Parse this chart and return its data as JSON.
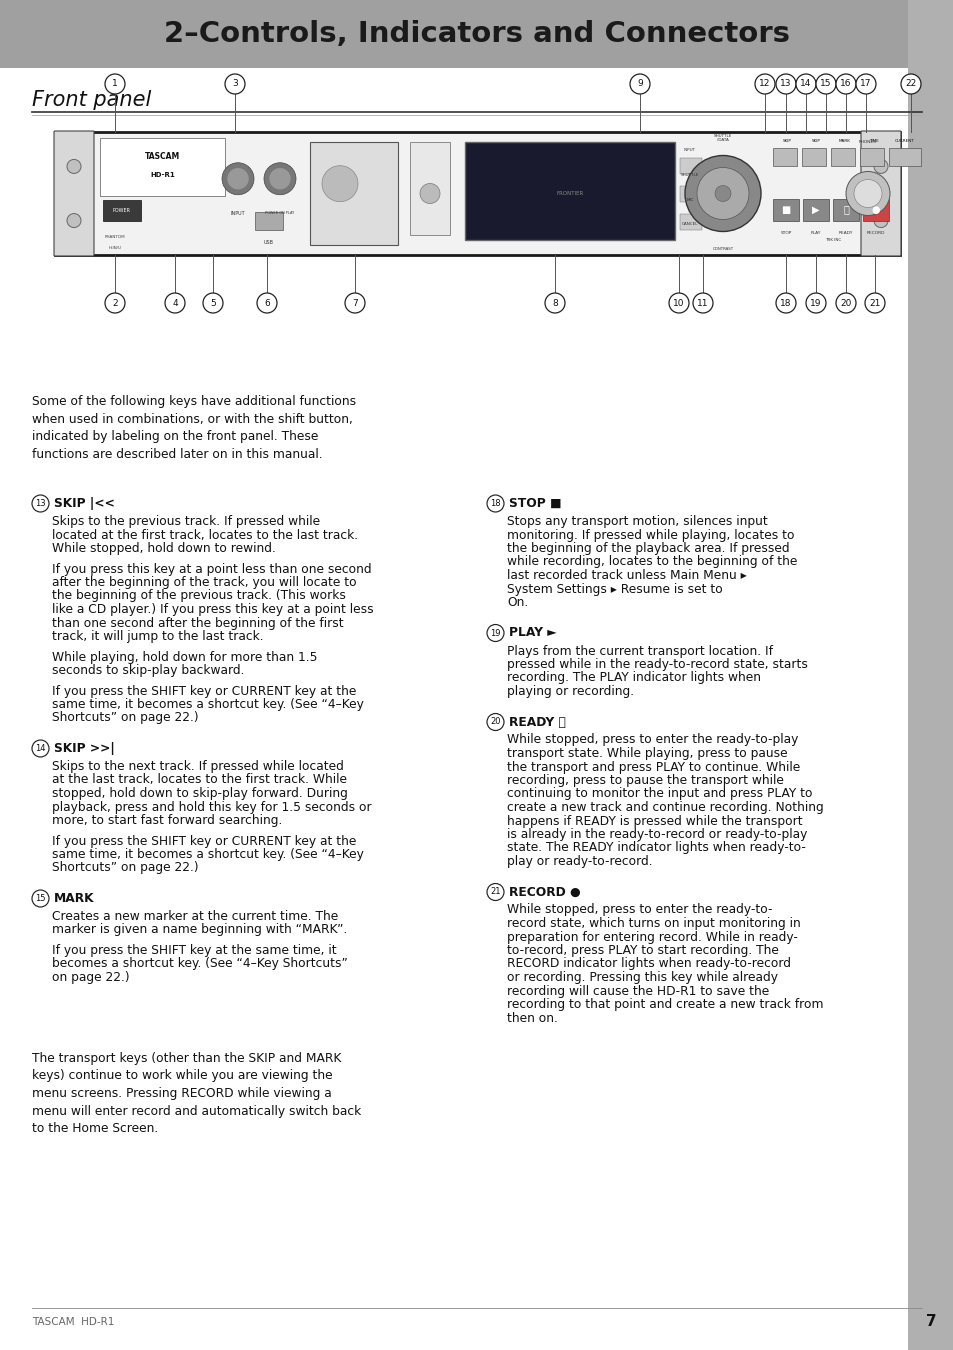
{
  "title": "2–Controls, Indicators and Connectors",
  "title_bg": "#a0a0a0",
  "title_color": "#1a1a1a",
  "section_title": "Front panel",
  "page_bg": "#ffffff",
  "body_text_color": "#111111",
  "footer_text": "TASCAM  HD-R1",
  "footer_page": "7",
  "intro_text": "Some of the following keys have additional functions\nwhen used in combinations, or with the shift button,\nindicated by labeling on the front panel. These\nfunctions are described later on in this manual.",
  "left_sections": [
    {
      "num": "13",
      "label": "SKIP |<<",
      "paragraphs": [
        "Skips to the previous track. If pressed while\nlocated at the first track, locates to the last track.\nWhile stopped, hold down to rewind.",
        "If you press this key at a point less than one second\nafter the beginning of the track, you will locate to\nthe beginning of the previous track. (This works\nlike a CD player.) If you press this key at a point less\nthan one second after the beginning of the first\ntrack, it will jump to the last track.",
        "While playing, hold down for more than 1.5\nseconds to skip-play backward.",
        "If you press the ~SHIFT~ key or ~CURRENT~ key at the\nsame time, it becomes a shortcut key. (See “4–Key\nShortcuts” on page 22.)"
      ]
    },
    {
      "num": "14",
      "label": "SKIP >>|",
      "paragraphs": [
        "Skips to the next track. If pressed while located\nat the last track, locates to the first track. While\nstopped, hold down to skip-play forward. During\nplayback, press and hold this key for 1.5 seconds or\nmore, to start fast forward searching.",
        "If you press the ~SHIFT~ key or ~CURRENT~ key at the\nsame time, it becomes a shortcut key. (See “4–Key\nShortcuts” on page 22.)"
      ]
    },
    {
      "num": "15",
      "label": "MARK",
      "paragraphs": [
        "Creates a new marker at the current time. The\nmarker is given a name beginning with “`MARK`”.",
        "If you press the ~SHIFT~ key at the same time, it\nbecomes a shortcut key. (See “4–Key Shortcuts”\non page 22.)"
      ]
    }
  ],
  "right_sections": [
    {
      "num": "18",
      "label": "STOP ■",
      "paragraphs": [
        "Stops any transport motion, silences input\nmonitoring. If pressed while playing, locates to\nthe beginning of the playback area. If pressed\nwhile recording, locates to the beginning of the\nlast recorded track unless `Main Menu` ▸\n`System Settings` ▸ `Resume` is set to\n`On`."
      ]
    },
    {
      "num": "19",
      "label": "PLAY ►",
      "paragraphs": [
        "Plays from the current transport location. If\npressed while in the ready-to-record state, starts\nrecording. The `PLAY` indicator lights when\nplaying or recording."
      ]
    },
    {
      "num": "20",
      "label": "READY ⏸",
      "paragraphs": [
        "While stopped, press to enter the ready-to-play\ntransport state. While playing, press to pause\nthe transport and press ~PLAY~ to continue. While\nrecording, press to pause the transport while\ncontinuing to monitor the input and press ~PLAY~ to\ncreate a new track and continue recording. Nothing\nhappens if ~READY~ is pressed while the transport\nis already in the ready-to-record or ready-to-play\nstate. The `READY` indicator lights when ready-to-\nplay or ready-to-record."
      ]
    },
    {
      "num": "21",
      "label": "RECORD ●",
      "paragraphs": [
        "While stopped, press to enter the ready-to-\nrecord state, which turns on input monitoring in\npreparation for entering record. While in ready-\nto-record, press ~PLAY~ to start recording. The\n`RECORD` indicator lights when ready-to-record\nor recording. Pressing this key while already\nrecording will cause the HD-R1 to save the\nrecording to that point and create a new track from\nthen on."
      ]
    }
  ],
  "bottom_text": "The transport keys (other than the ~SKIP~ and ~MARK~\nkeys) continue to work while you are viewing the\nmenu screens. Pressing ~RECORD~ while viewing a\nmenu will enter record and automatically switch back\nto the Home Screen."
}
